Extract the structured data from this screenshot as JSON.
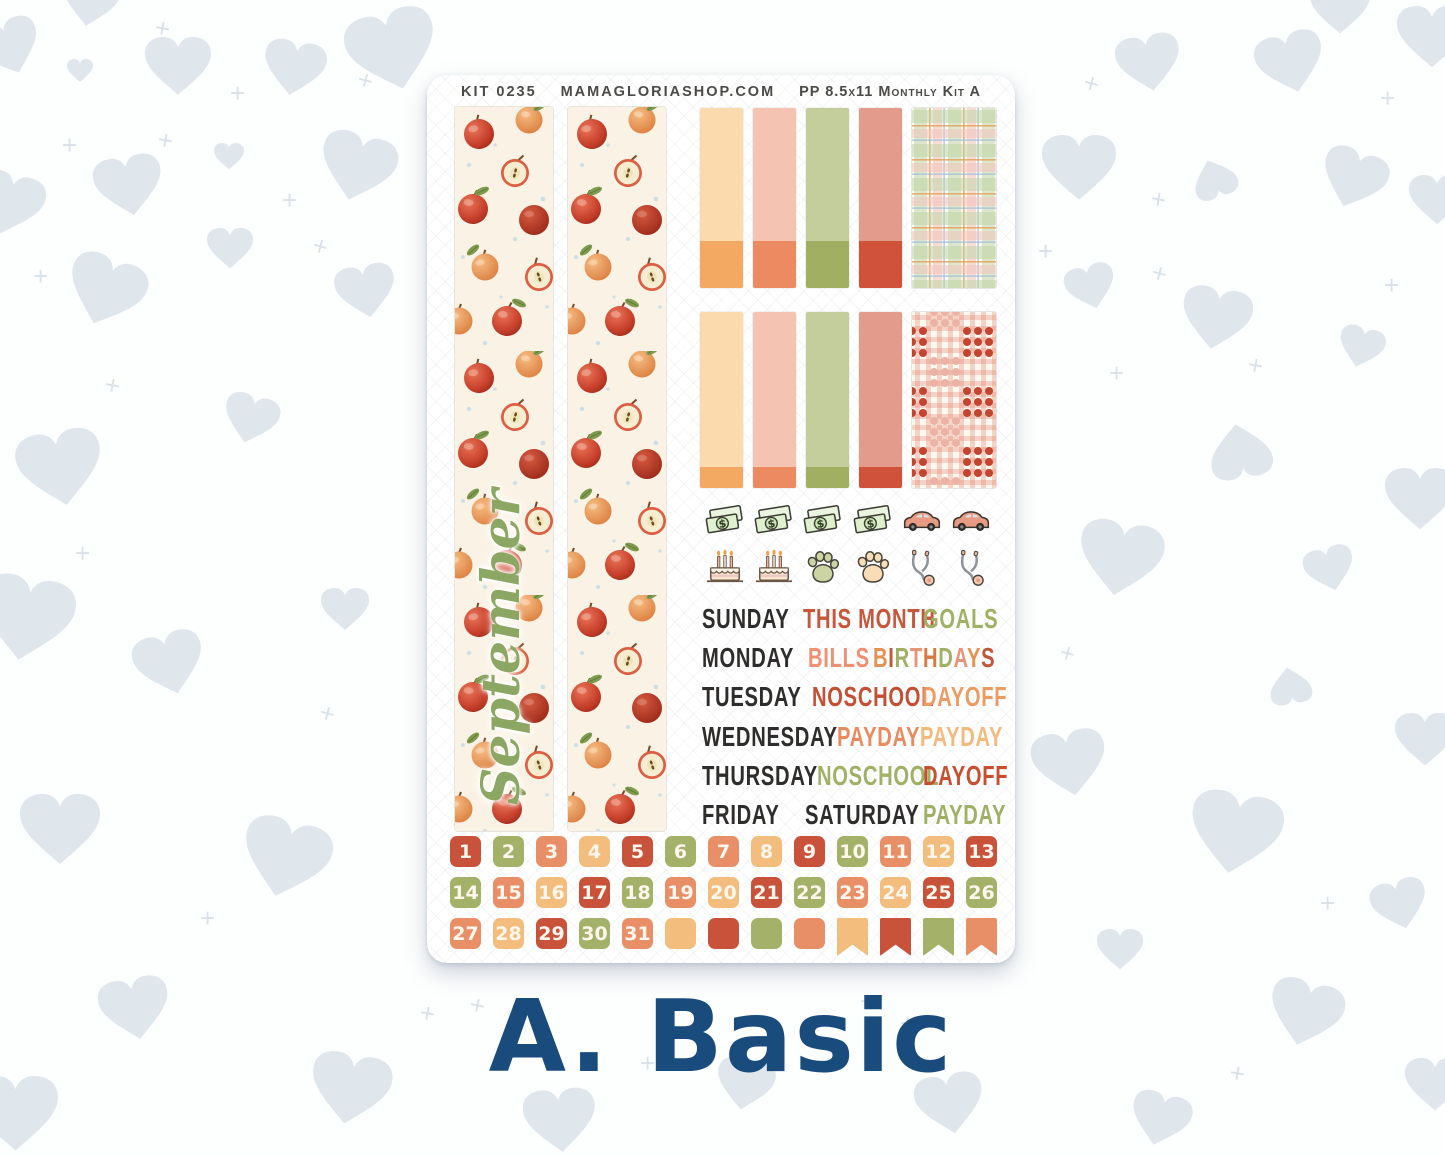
{
  "header": {
    "kit_number": "KIT 0235",
    "shop_url": "MAMAGLORIASHOP.COM",
    "kit_label": "PP 8.5x11 Monthly Kit A"
  },
  "caption": "A. Basic",
  "month_label": "September",
  "colors": {
    "heart": "#DFE6EC",
    "caption_navy": "#1A4B7D",
    "sheet_white": "#FFFFFF",
    "washi_cream": "#FAF3E5",
    "script_green": "#8CA763",
    "palette": {
      "red": "#C8523A",
      "green": "#A4B269",
      "coral": "#E88F67",
      "peach": "#F2BD7D"
    }
  },
  "boxes": {
    "row1": [
      {
        "kind": "half",
        "top": "#FBDBAE",
        "bottom": "#F3A961"
      },
      {
        "kind": "half",
        "top": "#F5C3B2",
        "bottom": "#EC8B61"
      },
      {
        "kind": "half",
        "top": "#C4CE9C",
        "bottom": "#A0AF61"
      },
      {
        "kind": "half",
        "top": "#E39B8B",
        "bottom": "#D0523A"
      },
      {
        "kind": "plaid"
      }
    ],
    "row2": [
      {
        "kind": "full",
        "top": "#FBDBAE",
        "bottom": "#F3A961"
      },
      {
        "kind": "full",
        "top": "#F5C3B2",
        "bottom": "#EC8B61"
      },
      {
        "kind": "full",
        "top": "#C4CE9C",
        "bottom": "#A0AF61"
      },
      {
        "kind": "full",
        "top": "#E39B8B",
        "bottom": "#D0523A"
      },
      {
        "kind": "gingham"
      }
    ]
  },
  "icons": {
    "row1": [
      "money-icon",
      "money-icon",
      "money-icon",
      "money-icon",
      "car-icon",
      "car-icon"
    ],
    "row2": [
      "cake-icon",
      "cake-icon",
      "paw-green-icon",
      "paw-peach-icon",
      "stethoscope-icon",
      "stethoscope-icon"
    ]
  },
  "words": {
    "rows": [
      [
        {
          "text": "SUNDAY",
          "color": "#2F2D2B"
        },
        {
          "text": "THIS MONTH",
          "color": "#C6573B"
        },
        {
          "text": "GOALS",
          "color": "#A0B166"
        }
      ],
      [
        {
          "text": "MONDAY",
          "color": "#2F2D2B"
        },
        {
          "text": "BILLS",
          "color": "#EC9272"
        },
        {
          "text": "BIRTHDAYS",
          "letters": [
            "#E59353",
            "#C0563A",
            "#A0B166",
            "#E8947B",
            "#D9793F",
            "#A0B166",
            "#E8947B",
            "#E59353",
            "#C0563A"
          ]
        }
      ],
      [
        {
          "text": "TUESDAY",
          "color": "#2F2D2B"
        },
        {
          "text": "NOSCHOOL",
          "color": "#C44F33"
        },
        {
          "text": "DAYOFF",
          "color": "#EC9B63"
        }
      ],
      [
        {
          "text": "WEDNESDAY",
          "color": "#2F2D2B"
        },
        {
          "text": "PAYDAY",
          "color": "#E98B5F"
        },
        {
          "text": "PAYDAY",
          "color": "#F3BA7E"
        }
      ],
      [
        {
          "text": "THURSDAY",
          "color": "#2F2D2B"
        },
        {
          "text": "NOSCHOOL",
          "color": "#A0B166"
        },
        {
          "text": "DAYOFF",
          "color": "#C94E30"
        }
      ],
      [
        {
          "text": "FRIDAY",
          "color": "#2F2D2B"
        },
        {
          "text": "SATURDAY",
          "color": "#2F2D2B"
        },
        {
          "text": "PAYDAY",
          "color": "#A0B166"
        }
      ]
    ]
  },
  "dates": {
    "rows": [
      [
        {
          "t": "1",
          "c": "red"
        },
        {
          "t": "2",
          "c": "green"
        },
        {
          "t": "3",
          "c": "coral"
        },
        {
          "t": "4",
          "c": "peach"
        },
        {
          "t": "5",
          "c": "red"
        },
        {
          "t": "6",
          "c": "green"
        },
        {
          "t": "7",
          "c": "coral"
        },
        {
          "t": "8",
          "c": "peach"
        },
        {
          "t": "9",
          "c": "red"
        },
        {
          "t": "10",
          "c": "green"
        },
        {
          "t": "11",
          "c": "coral"
        },
        {
          "t": "12",
          "c": "peach"
        },
        {
          "t": "13",
          "c": "red"
        }
      ],
      [
        {
          "t": "14",
          "c": "green"
        },
        {
          "t": "15",
          "c": "coral"
        },
        {
          "t": "16",
          "c": "peach"
        },
        {
          "t": "17",
          "c": "red"
        },
        {
          "t": "18",
          "c": "green"
        },
        {
          "t": "19",
          "c": "coral"
        },
        {
          "t": "20",
          "c": "peach"
        },
        {
          "t": "21",
          "c": "red"
        },
        {
          "t": "22",
          "c": "green"
        },
        {
          "t": "23",
          "c": "coral"
        },
        {
          "t": "24",
          "c": "peach"
        },
        {
          "t": "25",
          "c": "red"
        },
        {
          "t": "26",
          "c": "green"
        }
      ],
      [
        {
          "t": "27",
          "c": "coral"
        },
        {
          "t": "28",
          "c": "peach"
        },
        {
          "t": "29",
          "c": "red"
        },
        {
          "t": "30",
          "c": "green"
        },
        {
          "t": "31",
          "c": "coral"
        },
        {
          "t": "",
          "c": "peach"
        },
        {
          "t": "",
          "c": "red"
        },
        {
          "t": "",
          "c": "green"
        },
        {
          "t": "",
          "c": "coral"
        },
        {
          "t": "",
          "c": "peach",
          "flag": true
        },
        {
          "t": "",
          "c": "red",
          "flag": true
        },
        {
          "t": "",
          "c": "green",
          "flag": true
        },
        {
          "t": "",
          "c": "coral",
          "flag": true
        }
      ]
    ]
  }
}
